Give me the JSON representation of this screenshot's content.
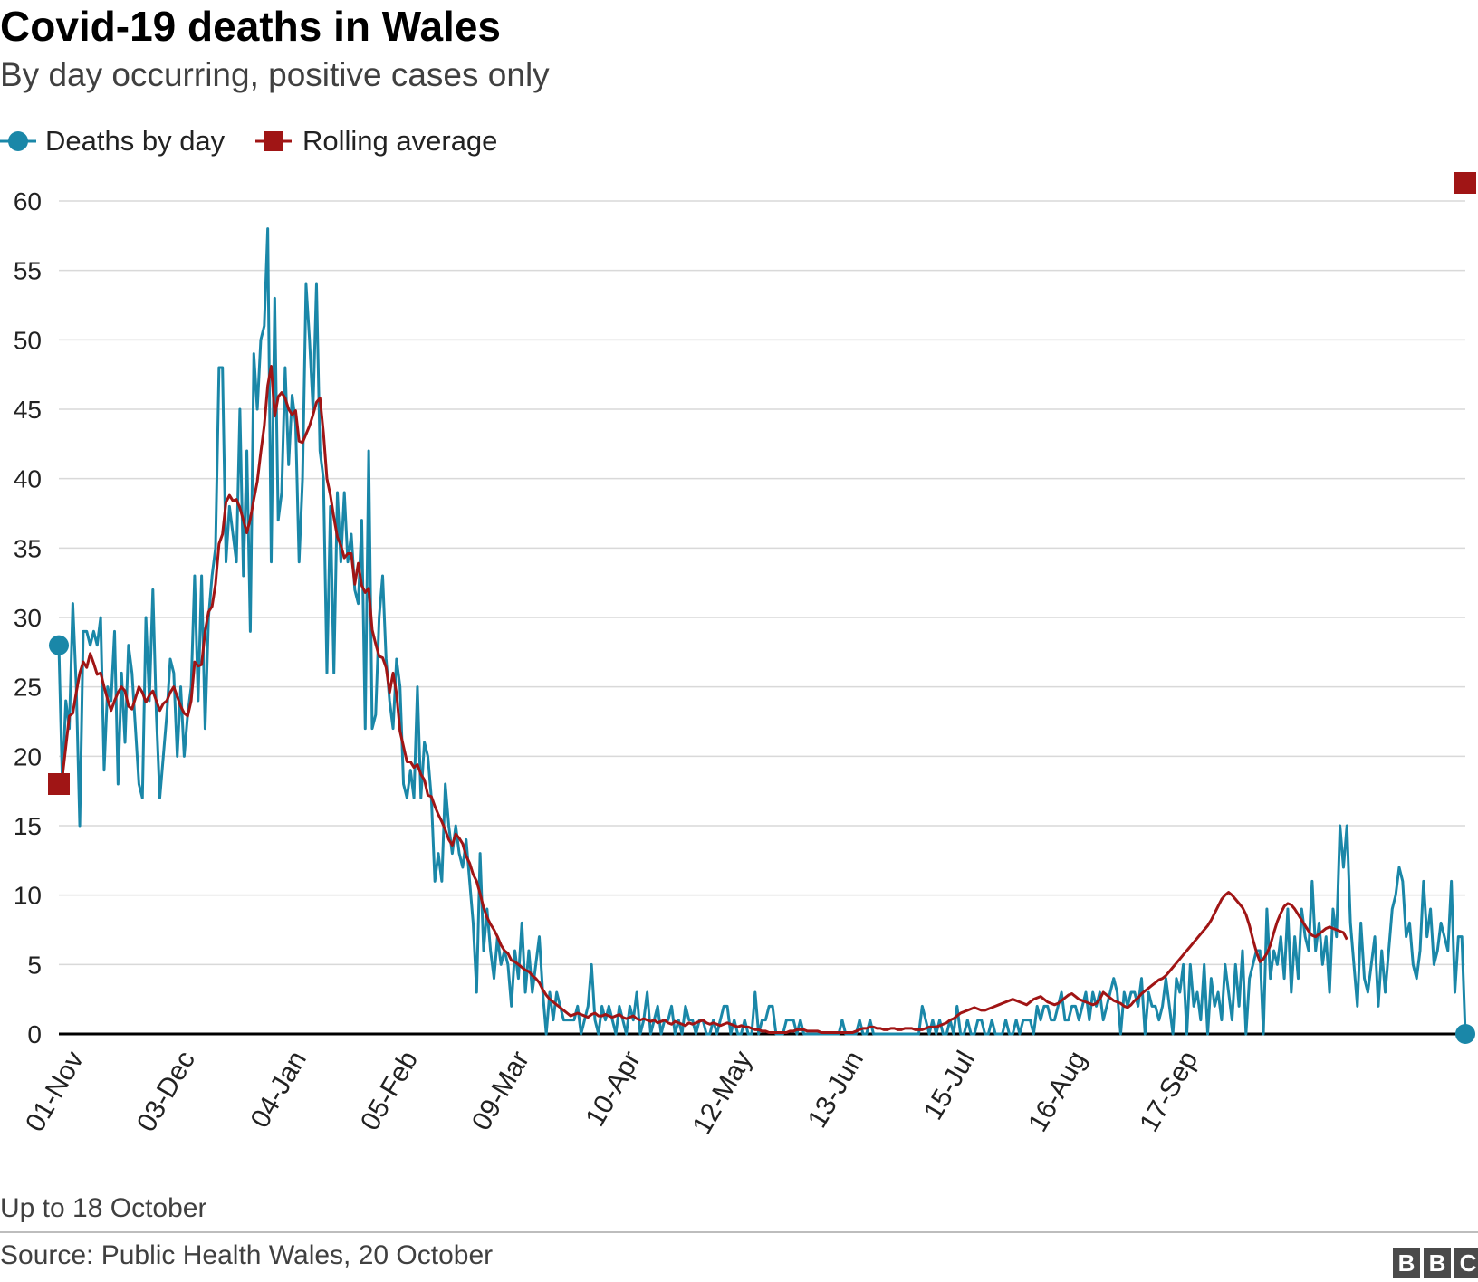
{
  "header": {
    "title": "Covid-19 deaths in Wales",
    "subtitle": "By day occurring, positive cases only"
  },
  "legend": {
    "deaths_label": "Deaths by day",
    "rolling_label": "Rolling average"
  },
  "footer": {
    "note": "Up to 18 October",
    "source": "Source: Public Health Wales, 20 October",
    "logo_letters": [
      "B",
      "B",
      "C"
    ]
  },
  "colors": {
    "deaths": "#1a87a8",
    "rolling": "#a01515",
    "grid": "#d9d9d9",
    "axis": "#000000",
    "text": "#222222"
  },
  "chart_data": {
    "type": "line",
    "title": "Covid-19 deaths in Wales",
    "subtitle": "By day occurring, positive cases only",
    "xlabel": "",
    "ylabel": "",
    "x_start": "01-Nov",
    "x_end": "18-Oct",
    "x_step_days": 1,
    "x_tick_labels": [
      "01-Nov",
      "03-Dec",
      "04-Jan",
      "05-Feb",
      "09-Mar",
      "10-Apr",
      "12-May",
      "13-Jun",
      "15-Jul",
      "16-Aug",
      "17-Sep"
    ],
    "x_tick_day_index": [
      0,
      32,
      64,
      96,
      128,
      160,
      192,
      224,
      256,
      288,
      320
    ],
    "y_ticks": [
      0,
      5,
      10,
      15,
      20,
      25,
      30,
      35,
      40,
      45,
      50,
      55,
      60
    ],
    "ylim": [
      0,
      60
    ],
    "grid": true,
    "legend_position": "top-left",
    "series": [
      {
        "name": "Deaths by day",
        "marker": "circle",
        "values": [
          28,
          18,
          24,
          22,
          31,
          25,
          15,
          29,
          29,
          28,
          29,
          28,
          30,
          19,
          25,
          24,
          29,
          18,
          26,
          21,
          28,
          26,
          22,
          18,
          17,
          30,
          24,
          32,
          23,
          17,
          20,
          23,
          27,
          26,
          20,
          25,
          20,
          23,
          25,
          33,
          24,
          33,
          22,
          30,
          33,
          35,
          48,
          48,
          34,
          38,
          36,
          34,
          45,
          33,
          42,
          29,
          49,
          45,
          50,
          51,
          58,
          34,
          53,
          37,
          39,
          48,
          41,
          46,
          44,
          34,
          40,
          54,
          50,
          45,
          54,
          42,
          40,
          26,
          38,
          26,
          39,
          34,
          39,
          34,
          36,
          32,
          31,
          37,
          22,
          42,
          22,
          23,
          30,
          33,
          27,
          24,
          22,
          27,
          25,
          18,
          17,
          19,
          17,
          25,
          17,
          21,
          20,
          17,
          11,
          13,
          11,
          18,
          15,
          13,
          15,
          13,
          12,
          14,
          11,
          8,
          3,
          13,
          6,
          9,
          6,
          4,
          7,
          5,
          6,
          5,
          2,
          6,
          4,
          8,
          3,
          6,
          3,
          5,
          7,
          3,
          0,
          3,
          1,
          3,
          2,
          1,
          1,
          1,
          1,
          2,
          0,
          1,
          2,
          5,
          1,
          0,
          2,
          1,
          2,
          1,
          0,
          2,
          1,
          0,
          2,
          1,
          3,
          0,
          1,
          3,
          0,
          1,
          2,
          0,
          1,
          1,
          2,
          0,
          1,
          0,
          2,
          1,
          1,
          0,
          1,
          1,
          0,
          0,
          1,
          0,
          1,
          2,
          2,
          0,
          1,
          0,
          0,
          1,
          0,
          0,
          3,
          0,
          1,
          1,
          2,
          2,
          0,
          0,
          0,
          1,
          1,
          1,
          0,
          1,
          0,
          0,
          0,
          0,
          0,
          0,
          0,
          0,
          0,
          0,
          0,
          1,
          0,
          0,
          0,
          0,
          1,
          0,
          0,
          1,
          0,
          0,
          0,
          0,
          0,
          0,
          0,
          0,
          0,
          0,
          0,
          0,
          0,
          0,
          2,
          1,
          0,
          1,
          0,
          1,
          0,
          0,
          1,
          0,
          2,
          0,
          0,
          1,
          0,
          0,
          1,
          1,
          0,
          0,
          1,
          0,
          0,
          0,
          1,
          0,
          0,
          1,
          0,
          1,
          1,
          1,
          0,
          2,
          1,
          2,
          2,
          1,
          1,
          2,
          3,
          1,
          1,
          2,
          2,
          1,
          2,
          3,
          1,
          3,
          2,
          3,
          1,
          2,
          3,
          4,
          3,
          0,
          3,
          2,
          3,
          3,
          2,
          4,
          0,
          3,
          2,
          2,
          1,
          2,
          4,
          2,
          0,
          4,
          3,
          5,
          0,
          5,
          2,
          3,
          1,
          5,
          0,
          4,
          2,
          3,
          1,
          5,
          3,
          1,
          5,
          2,
          6,
          0,
          4,
          5,
          6,
          6,
          0,
          9,
          4,
          6,
          5,
          7,
          4,
          9,
          3,
          7,
          4,
          9,
          7,
          6,
          11,
          6,
          8,
          5,
          7,
          3,
          9,
          7,
          15,
          12,
          15,
          8,
          5,
          2,
          8,
          4,
          3,
          5,
          7,
          2,
          6,
          3,
          6,
          9,
          10,
          12,
          11,
          7,
          8,
          5,
          4,
          6,
          11,
          7,
          9,
          5,
          6,
          8,
          7,
          6,
          11,
          3,
          7,
          7,
          0
        ]
      },
      {
        "name": "Rolling average",
        "marker": "square",
        "values": [
          18.0,
          18.5,
          20.7,
          22.9,
          23.1,
          24.6,
          26.0,
          26.8,
          26.4,
          27.4,
          26.7,
          25.9,
          26.0,
          25.0,
          24.1,
          23.3,
          24.0,
          24.6,
          25.0,
          24.7,
          23.6,
          23.4,
          24.2,
          25.0,
          24.6,
          23.9,
          24.4,
          24.7,
          24.0,
          23.3,
          23.8,
          24.0,
          24.6,
          25.0,
          24.3,
          23.6,
          23.1,
          22.9,
          24.0,
          26.8,
          26.5,
          26.6,
          29.0,
          30.4,
          30.8,
          32.4,
          35.3,
          36.0,
          38.3,
          38.8,
          38.4,
          38.5,
          37.9,
          37.0,
          36.1,
          37.1,
          38.5,
          39.8,
          41.9,
          43.8,
          46.7,
          48.1,
          44.5,
          45.9,
          46.2,
          45.8,
          45.0,
          44.6,
          44.9,
          42.7,
          42.6,
          43.2,
          43.8,
          44.6,
          45.5,
          45.8,
          43.3,
          40.0,
          38.8,
          37.2,
          35.8,
          35.2,
          34.3,
          34.6,
          34.6,
          32.4,
          33.9,
          32.3,
          31.8,
          32.1,
          29.1,
          28.1,
          27.2,
          27.1,
          26.4,
          24.6,
          26.0,
          24.5,
          21.8,
          20.7,
          19.6,
          19.6,
          19.2,
          19.4,
          18.7,
          18.3,
          17.2,
          17.1,
          16.4,
          15.8,
          15.3,
          14.7,
          14.0,
          13.6,
          14.4,
          14.1,
          13.7,
          12.8,
          12.3,
          11.5,
          11.0,
          10.1,
          9.1,
          8.4,
          7.9,
          7.5,
          7.0,
          6.4,
          6.0,
          5.8,
          5.3,
          5.2,
          5.0,
          4.8,
          4.6,
          4.5,
          4.2,
          4.0,
          3.7,
          3.2,
          2.8,
          2.5,
          2.3,
          2.1,
          1.9,
          1.7,
          1.5,
          1.3,
          1.4,
          1.5,
          1.4,
          1.3,
          1.2,
          1.4,
          1.5,
          1.3,
          1.3,
          1.4,
          1.3,
          1.2,
          1.3,
          1.4,
          1.2,
          1.1,
          1.2,
          1.3,
          1.1,
          1.0,
          1.1,
          1.0,
          0.9,
          1.0,
          0.8,
          0.9,
          1.0,
          0.8,
          0.7,
          0.9,
          0.8,
          0.7,
          0.6,
          0.8,
          0.7,
          0.8,
          0.9,
          1.0,
          0.8,
          0.7,
          0.8,
          0.7,
          0.6,
          0.7,
          0.8,
          0.7,
          0.6,
          0.5,
          0.6,
          0.5,
          0.5,
          0.4,
          0.3,
          0.3,
          0.2,
          0.2,
          0.1,
          0.1,
          0.1,
          0.1,
          0.1,
          0.1,
          0.2,
          0.2,
          0.3,
          0.3,
          0.3,
          0.2,
          0.2,
          0.2,
          0.2,
          0.1,
          0.1,
          0.1,
          0.1,
          0.1,
          0.1,
          0.1,
          0.1,
          0.1,
          0.1,
          0.2,
          0.3,
          0.4,
          0.4,
          0.5,
          0.5,
          0.4,
          0.4,
          0.3,
          0.3,
          0.4,
          0.4,
          0.3,
          0.3,
          0.4,
          0.4,
          0.4,
          0.3,
          0.3,
          0.3,
          0.4,
          0.5,
          0.5,
          0.5,
          0.6,
          0.7,
          0.8,
          1.0,
          1.1,
          1.3,
          1.5,
          1.6,
          1.7,
          1.8,
          1.9,
          1.8,
          1.7,
          1.7,
          1.8,
          1.9,
          2.0,
          2.1,
          2.2,
          2.3,
          2.4,
          2.5,
          2.4,
          2.3,
          2.2,
          2.1,
          2.3,
          2.5,
          2.6,
          2.7,
          2.5,
          2.3,
          2.2,
          2.1,
          2.2,
          2.4,
          2.6,
          2.8,
          2.9,
          2.7,
          2.5,
          2.4,
          2.3,
          2.2,
          2.1,
          2.2,
          2.5,
          3.0,
          2.8,
          2.6,
          2.4,
          2.3,
          2.2,
          2.0,
          1.9,
          2.1,
          2.4,
          2.6,
          2.9,
          3.1,
          3.3,
          3.5,
          3.7,
          3.9,
          4.0,
          4.2,
          4.5,
          4.8,
          5.1,
          5.4,
          5.7,
          6.0,
          6.3,
          6.6,
          6.9,
          7.2,
          7.5,
          7.8,
          8.2,
          8.7,
          9.2,
          9.7,
          10.0,
          10.2,
          10.0,
          9.7,
          9.4,
          9.1,
          8.6,
          7.8,
          6.8,
          5.9,
          5.2,
          5.4,
          5.8,
          6.4,
          7.3,
          8.1,
          8.7,
          9.2,
          9.4,
          9.3,
          9.0,
          8.6,
          8.2,
          7.8,
          7.4,
          7.1,
          7.0,
          7.2,
          7.4,
          7.6,
          7.7,
          7.6,
          7.5,
          7.4,
          7.3,
          6.8
        ]
      }
    ]
  }
}
